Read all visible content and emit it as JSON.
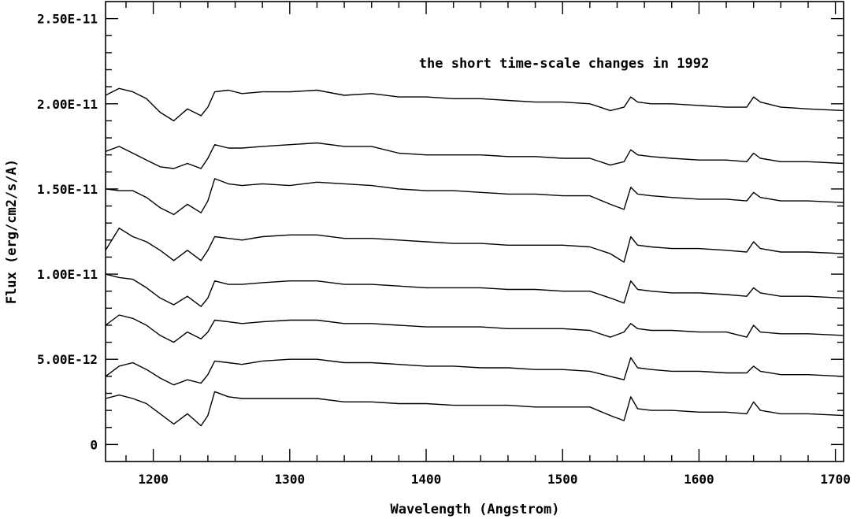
{
  "chart_data": {
    "type": "line",
    "title": "",
    "annotation": "the short time-scale changes in 1992",
    "xlabel": "Wavelength (Angstrom)",
    "ylabel": "Flux (erg/cm2/s/A)",
    "xlim": [
      1165,
      1706
    ],
    "ylim": [
      -1e-12,
      2.6e-11
    ],
    "x_ticks": [
      {
        "value": 1200,
        "label": "1200"
      },
      {
        "value": 1300,
        "label": "1300"
      },
      {
        "value": 1400,
        "label": "1400"
      },
      {
        "value": 1500,
        "label": "1500"
      },
      {
        "value": 1600,
        "label": "1600"
      },
      {
        "value": 1700,
        "label": "1700"
      }
    ],
    "y_ticks": [
      {
        "value": 0,
        "label": "0"
      },
      {
        "value": 5e-12,
        "label": "5.00E-12"
      },
      {
        "value": 1e-11,
        "label": "1.00E-11"
      },
      {
        "value": 1.5e-11,
        "label": "1.50E-11"
      },
      {
        "value": 2e-11,
        "label": "2.00E-11"
      },
      {
        "value": 2.5e-11,
        "label": "2.50E-11"
      }
    ],
    "grid": false,
    "legend": "none",
    "line_color": "#000000",
    "x": [
      1165,
      1175,
      1185,
      1195,
      1205,
      1215,
      1225,
      1235,
      1240,
      1245,
      1255,
      1265,
      1280,
      1300,
      1320,
      1340,
      1360,
      1380,
      1400,
      1420,
      1440,
      1460,
      1480,
      1500,
      1520,
      1535,
      1545,
      1550,
      1555,
      1565,
      1580,
      1600,
      1620,
      1635,
      1640,
      1645,
      1660,
      1680,
      1706
    ],
    "series": [
      {
        "values": [
          2.05e-11,
          2.09e-11,
          2.07e-11,
          2.03e-11,
          1.95e-11,
          1.9e-11,
          1.97e-11,
          1.93e-11,
          1.98e-11,
          2.07e-11,
          2.08e-11,
          2.06e-11,
          2.07e-11,
          2.07e-11,
          2.08e-11,
          2.05e-11,
          2.06e-11,
          2.04e-11,
          2.04e-11,
          2.03e-11,
          2.03e-11,
          2.02e-11,
          2.01e-11,
          2.01e-11,
          2e-11,
          1.96e-11,
          1.98e-11,
          2.04e-11,
          2.01e-11,
          2e-11,
          2e-11,
          1.99e-11,
          1.98e-11,
          1.98e-11,
          2.04e-11,
          2.01e-11,
          1.98e-11,
          1.97e-11,
          1.96e-11
        ]
      },
      {
        "values": [
          1.72e-11,
          1.75e-11,
          1.71e-11,
          1.67e-11,
          1.63e-11,
          1.62e-11,
          1.65e-11,
          1.62e-11,
          1.68e-11,
          1.76e-11,
          1.74e-11,
          1.74e-11,
          1.75e-11,
          1.76e-11,
          1.77e-11,
          1.75e-11,
          1.75e-11,
          1.71e-11,
          1.7e-11,
          1.7e-11,
          1.7e-11,
          1.69e-11,
          1.69e-11,
          1.68e-11,
          1.68e-11,
          1.64e-11,
          1.66e-11,
          1.73e-11,
          1.7e-11,
          1.69e-11,
          1.68e-11,
          1.67e-11,
          1.67e-11,
          1.66e-11,
          1.71e-11,
          1.68e-11,
          1.66e-11,
          1.66e-11,
          1.65e-11
        ]
      },
      {
        "values": [
          1.5e-11,
          1.49e-11,
          1.49e-11,
          1.45e-11,
          1.39e-11,
          1.35e-11,
          1.41e-11,
          1.36e-11,
          1.43e-11,
          1.56e-11,
          1.53e-11,
          1.52e-11,
          1.53e-11,
          1.52e-11,
          1.54e-11,
          1.53e-11,
          1.52e-11,
          1.5e-11,
          1.49e-11,
          1.49e-11,
          1.48e-11,
          1.47e-11,
          1.47e-11,
          1.46e-11,
          1.46e-11,
          1.41e-11,
          1.38e-11,
          1.51e-11,
          1.47e-11,
          1.46e-11,
          1.45e-11,
          1.44e-11,
          1.44e-11,
          1.43e-11,
          1.48e-11,
          1.45e-11,
          1.43e-11,
          1.43e-11,
          1.42e-11
        ]
      },
      {
        "values": [
          1.14e-11,
          1.27e-11,
          1.22e-11,
          1.19e-11,
          1.14e-11,
          1.08e-11,
          1.14e-11,
          1.08e-11,
          1.14e-11,
          1.22e-11,
          1.21e-11,
          1.2e-11,
          1.22e-11,
          1.23e-11,
          1.23e-11,
          1.21e-11,
          1.21e-11,
          1.2e-11,
          1.19e-11,
          1.18e-11,
          1.18e-11,
          1.17e-11,
          1.17e-11,
          1.17e-11,
          1.16e-11,
          1.12e-11,
          1.07e-11,
          1.22e-11,
          1.17e-11,
          1.16e-11,
          1.15e-11,
          1.15e-11,
          1.14e-11,
          1.13e-11,
          1.19e-11,
          1.15e-11,
          1.13e-11,
          1.13e-11,
          1.12e-11
        ]
      },
      {
        "values": [
          1e-11,
          9.8e-12,
          9.7e-12,
          9.2e-12,
          8.6e-12,
          8.2e-12,
          8.7e-12,
          8.1e-12,
          8.6e-12,
          9.6e-12,
          9.4e-12,
          9.4e-12,
          9.5e-12,
          9.6e-12,
          9.6e-12,
          9.4e-12,
          9.4e-12,
          9.3e-12,
          9.2e-12,
          9.2e-12,
          9.2e-12,
          9.1e-12,
          9.1e-12,
          9e-12,
          9e-12,
          8.6e-12,
          8.3e-12,
          9.6e-12,
          9.1e-12,
          9e-12,
          8.9e-12,
          8.9e-12,
          8.8e-12,
          8.7e-12,
          9.2e-12,
          8.9e-12,
          8.7e-12,
          8.7e-12,
          8.6e-12
        ]
      },
      {
        "values": [
          7e-12,
          7.6e-12,
          7.4e-12,
          7e-12,
          6.4e-12,
          6e-12,
          6.6e-12,
          6.2e-12,
          6.6e-12,
          7.3e-12,
          7.2e-12,
          7.1e-12,
          7.2e-12,
          7.3e-12,
          7.3e-12,
          7.1e-12,
          7.1e-12,
          7e-12,
          6.9e-12,
          6.9e-12,
          6.9e-12,
          6.8e-12,
          6.8e-12,
          6.8e-12,
          6.7e-12,
          6.3e-12,
          6.6e-12,
          7.1e-12,
          6.8e-12,
          6.7e-12,
          6.7e-12,
          6.6e-12,
          6.6e-12,
          6.3e-12,
          7e-12,
          6.6e-12,
          6.5e-12,
          6.5e-12,
          6.4e-12
        ]
      },
      {
        "values": [
          4e-12,
          4.6e-12,
          4.8e-12,
          4.4e-12,
          3.9e-12,
          3.5e-12,
          3.8e-12,
          3.6e-12,
          4.1e-12,
          4.9e-12,
          4.8e-12,
          4.7e-12,
          4.9e-12,
          5e-12,
          5e-12,
          4.8e-12,
          4.8e-12,
          4.7e-12,
          4.6e-12,
          4.6e-12,
          4.5e-12,
          4.5e-12,
          4.4e-12,
          4.4e-12,
          4.3e-12,
          4e-12,
          3.8e-12,
          5.1e-12,
          4.5e-12,
          4.4e-12,
          4.3e-12,
          4.3e-12,
          4.2e-12,
          4.2e-12,
          4.6e-12,
          4.3e-12,
          4.1e-12,
          4.1e-12,
          4e-12
        ]
      },
      {
        "values": [
          2.7e-12,
          2.9e-12,
          2.7e-12,
          2.4e-12,
          1.8e-12,
          1.2e-12,
          1.8e-12,
          1.1e-12,
          1.7e-12,
          3.1e-12,
          2.8e-12,
          2.7e-12,
          2.7e-12,
          2.7e-12,
          2.7e-12,
          2.5e-12,
          2.5e-12,
          2.4e-12,
          2.4e-12,
          2.3e-12,
          2.3e-12,
          2.3e-12,
          2.2e-12,
          2.2e-12,
          2.2e-12,
          1.7e-12,
          1.4e-12,
          2.8e-12,
          2.1e-12,
          2e-12,
          2e-12,
          1.9e-12,
          1.9e-12,
          1.8e-12,
          2.5e-12,
          2e-12,
          1.8e-12,
          1.8e-12,
          1.7e-12
        ]
      }
    ]
  }
}
